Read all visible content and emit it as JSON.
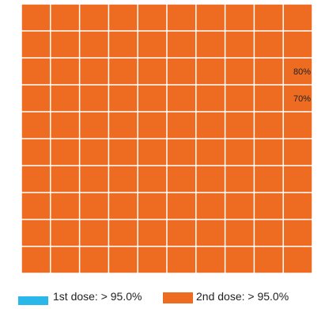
{
  "chart_data": {
    "type": "waffle",
    "rows": 10,
    "columns": 10,
    "cell_color": "#ee6c22",
    "grid_line_color": "#ffffff",
    "annotations": [
      {
        "text": "80%",
        "row": 3,
        "column": 10
      },
      {
        "text": "70%",
        "row": 4,
        "column": 10
      }
    ],
    "series": [
      {
        "name": "1st dose",
        "label": "1st dose: > 95.0%",
        "color": "#2ab8ea"
      },
      {
        "name": "2nd dose",
        "label": "2nd dose: > 95.0%",
        "color": "#ee6c22"
      }
    ]
  }
}
